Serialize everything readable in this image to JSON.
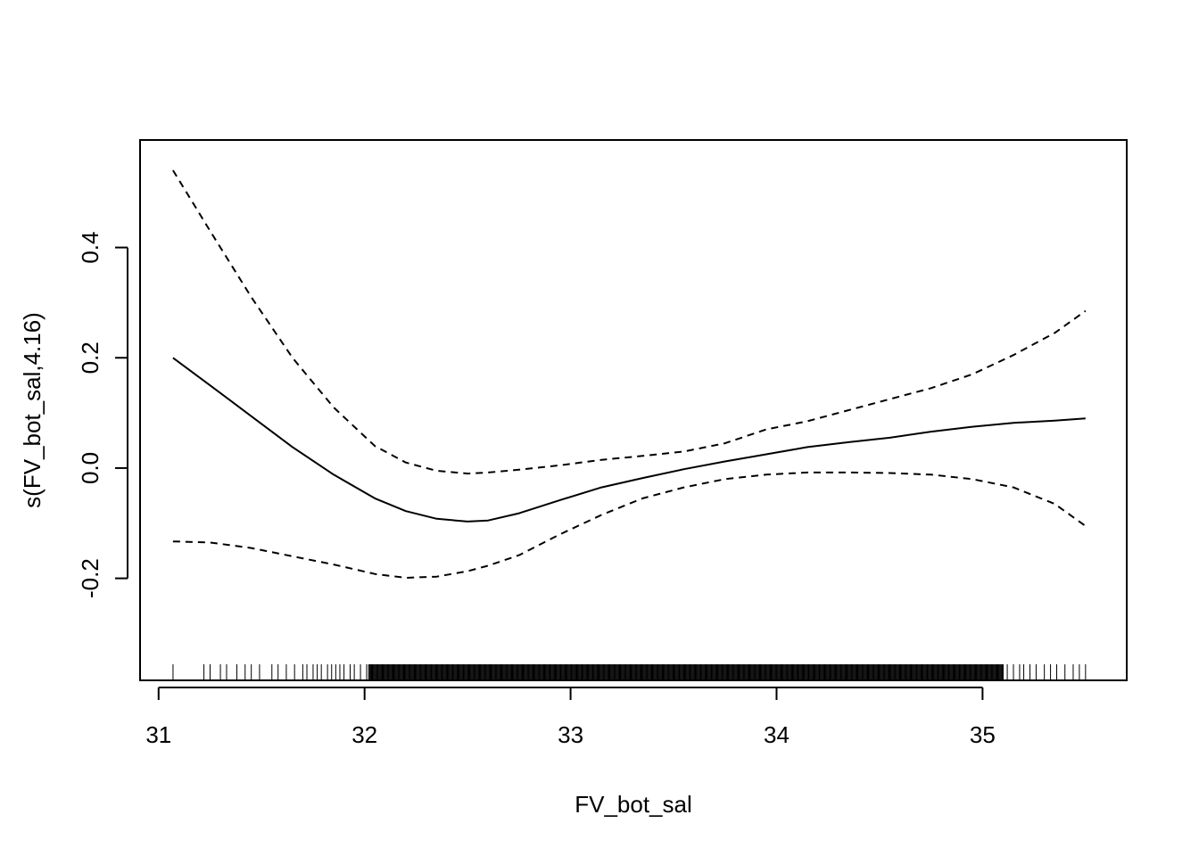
{
  "chart_data": {
    "type": "line",
    "xlabel": "FV_bot_sal",
    "ylabel": "s(FV_bot_sal,4.16)",
    "xlim": [
      30.91,
      35.7
    ],
    "ylim": [
      -0.385,
      0.595
    ],
    "x_ticks": [
      31,
      32,
      33,
      34,
      35
    ],
    "x_tick_labels": [
      "31",
      "32",
      "33",
      "34",
      "35"
    ],
    "y_ticks": [
      -0.2,
      0.0,
      0.2,
      0.4
    ],
    "y_tick_labels": [
      "-0.2",
      "0.0",
      "0.2",
      "0.4"
    ],
    "grid": false,
    "legend": "none",
    "series": [
      {
        "style": "solid",
        "x": [
          31.07,
          31.25,
          31.45,
          31.65,
          31.85,
          32.05,
          32.2,
          32.35,
          32.5,
          32.6,
          32.75,
          32.95,
          33.15,
          33.35,
          33.55,
          33.75,
          33.95,
          34.15,
          34.35,
          34.55,
          34.75,
          34.95,
          35.15,
          35.35,
          35.5
        ],
        "y": [
          0.2,
          0.15,
          0.094,
          0.038,
          -0.012,
          -0.055,
          -0.078,
          -0.092,
          -0.097,
          -0.095,
          -0.082,
          -0.058,
          -0.035,
          -0.018,
          -0.002,
          0.012,
          0.025,
          0.038,
          0.047,
          0.055,
          0.066,
          0.075,
          0.082,
          0.086,
          0.09
        ]
      },
      {
        "style": "dashed",
        "x": [
          31.07,
          31.25,
          31.45,
          31.65,
          31.85,
          32.05,
          32.2,
          32.35,
          32.5,
          32.6,
          32.75,
          32.95,
          33.15,
          33.35,
          33.55,
          33.75,
          33.95,
          34.15,
          34.35,
          34.55,
          34.75,
          34.95,
          35.15,
          35.35,
          35.5
        ],
        "y": [
          0.54,
          0.43,
          0.31,
          0.2,
          0.11,
          0.04,
          0.01,
          -0.005,
          -0.01,
          -0.008,
          -0.003,
          0.005,
          0.015,
          0.022,
          0.03,
          0.045,
          0.07,
          0.085,
          0.105,
          0.125,
          0.145,
          0.17,
          0.205,
          0.245,
          0.285
        ]
      },
      {
        "style": "dashed",
        "x": [
          31.07,
          31.25,
          31.45,
          31.65,
          31.85,
          32.05,
          32.2,
          32.35,
          32.5,
          32.6,
          32.75,
          32.95,
          33.15,
          33.35,
          33.55,
          33.75,
          33.95,
          34.15,
          34.35,
          34.55,
          34.75,
          34.95,
          35.15,
          35.35,
          35.5
        ],
        "y": [
          -0.133,
          -0.135,
          -0.145,
          -0.16,
          -0.175,
          -0.192,
          -0.199,
          -0.197,
          -0.187,
          -0.177,
          -0.158,
          -0.12,
          -0.085,
          -0.055,
          -0.035,
          -0.02,
          -0.012,
          -0.008,
          -0.008,
          -0.009,
          -0.012,
          -0.02,
          -0.035,
          -0.065,
          -0.105
        ]
      }
    ],
    "rug": {
      "x_min": 31.07,
      "x_max": 35.5,
      "sparse_ticks": [
        31.07,
        31.22,
        31.25,
        31.3,
        31.33,
        31.38,
        31.42,
        31.45,
        31.49,
        31.55,
        31.58,
        31.62,
        31.66,
        31.7,
        31.72,
        31.75,
        31.77,
        31.79,
        31.82,
        31.84,
        31.86,
        31.88,
        31.9,
        31.93,
        31.95,
        31.98,
        32.01
      ],
      "dense_from": 32.02,
      "dense_to": 35.1,
      "tail_ticks": [
        35.12,
        35.15,
        35.18,
        35.2,
        35.23,
        35.26,
        35.3,
        35.33,
        35.36,
        35.4,
        35.44,
        35.47,
        35.5
      ]
    }
  }
}
